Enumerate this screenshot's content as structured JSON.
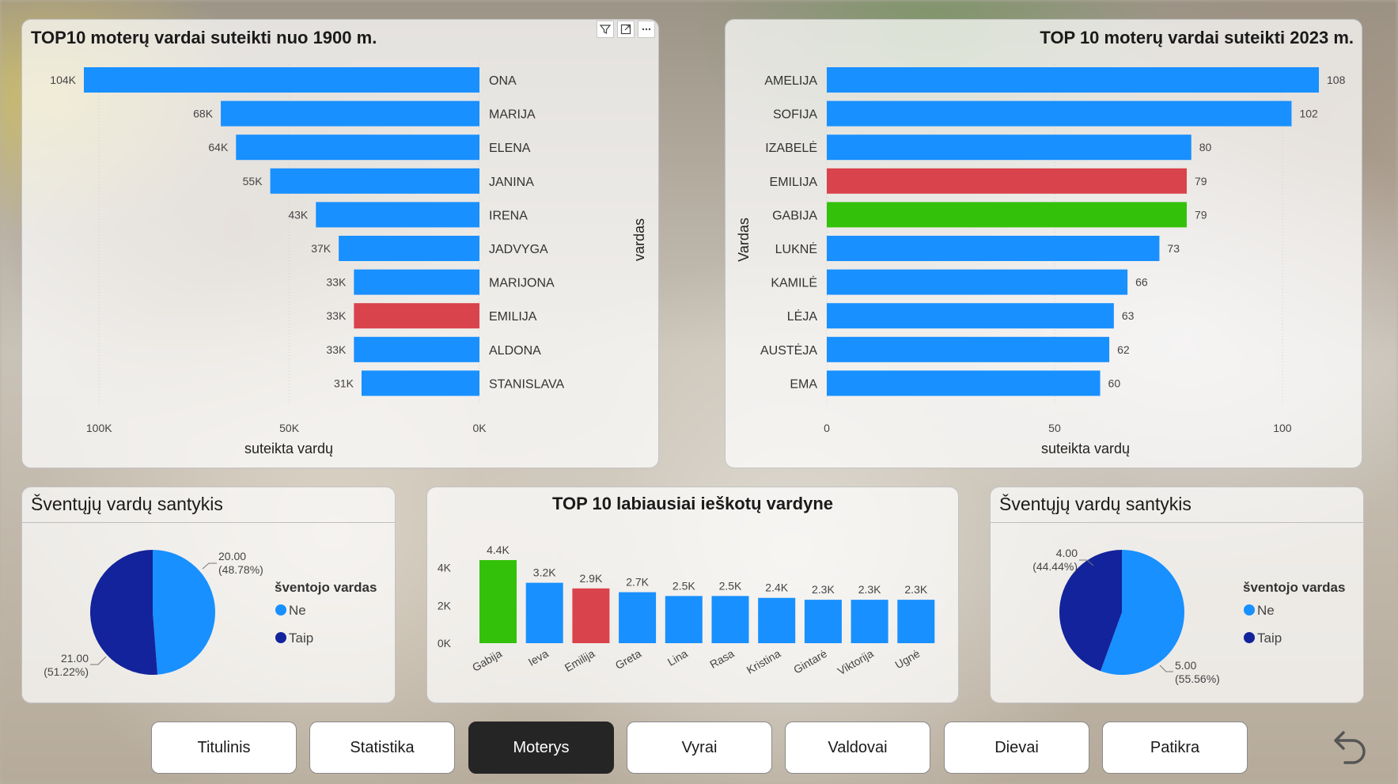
{
  "colors": {
    "blue": "#1890ff",
    "red": "#d9434b",
    "green": "#33c10a",
    "dark_blue": "#13239b"
  },
  "panel1": {
    "title": "TOP10 moterų vardai suteikti nuo 1900 m.",
    "chart_data": {
      "type": "bar",
      "categories": [
        "ONA",
        "MARIJA",
        "ELENA",
        "JANINA",
        "IRENA",
        "JADVYGA",
        "MARIJONA",
        "EMILIJA",
        "ALDONA",
        "STANISLAVA"
      ],
      "values": [
        104000,
        68000,
        64000,
        55000,
        43000,
        37000,
        33000,
        33000,
        33000,
        31000
      ],
      "data_labels": [
        "104K",
        "68K",
        "64K",
        "55K",
        "43K",
        "37K",
        "33K",
        "33K",
        "33K",
        "31K"
      ],
      "highlight": {
        "EMILIJA": "red"
      },
      "xlim": [
        0,
        104000
      ],
      "x_ticks": [
        100000,
        50000,
        0
      ],
      "x_tick_labels": [
        "100K",
        "50K",
        "0K"
      ],
      "xlabel": "suteikta vardų",
      "ylabel": "vardas"
    }
  },
  "panel2": {
    "title": "TOP 10 moterų vardai suteikti 2023 m.",
    "chart_data": {
      "type": "bar",
      "categories": [
        "AMELIJA",
        "SOFIJA",
        "IZABELĖ",
        "EMILIJA",
        "GABIJA",
        "LUKNĖ",
        "KAMILĖ",
        "LĖJA",
        "AUSTĖJA",
        "EMA"
      ],
      "values": [
        108,
        102,
        80,
        79,
        79,
        73,
        66,
        63,
        62,
        60
      ],
      "data_labels": [
        "108",
        "102",
        "80",
        "79",
        "79",
        "73",
        "66",
        "63",
        "62",
        "60"
      ],
      "highlight": {
        "EMILIJA": "red",
        "GABIJA": "green"
      },
      "xlim": [
        0,
        108
      ],
      "x_ticks": [
        0,
        50,
        100
      ],
      "x_tick_labels": [
        "0",
        "50",
        "100"
      ],
      "xlabel": "suteikta vardų",
      "ylabel": "Vardas"
    }
  },
  "panel3": {
    "title": "Šventųjų vardų santykis",
    "chart_data": {
      "type": "pie",
      "legend_title": "šventojo vardas",
      "slices": [
        {
          "name": "Ne",
          "value": 20.0,
          "value_label": "20.00",
          "pct_label": "(48.78%)",
          "color": "blue"
        },
        {
          "name": "Taip",
          "value": 21.0,
          "value_label": "21.00",
          "pct_label": "(51.22%)",
          "color": "dark_blue"
        }
      ]
    }
  },
  "panel4": {
    "title": "TOP 10 labiausiai ieškotų vardyne",
    "chart_data": {
      "type": "bar",
      "categories": [
        "Gabija",
        "Ieva",
        "Emilija",
        "Greta",
        "Lina",
        "Rasa",
        "Kristina",
        "Gintarė",
        "Viktorija",
        "Ugnė"
      ],
      "values": [
        4400,
        3200,
        2900,
        2700,
        2500,
        2500,
        2400,
        2300,
        2300,
        2300
      ],
      "data_labels": [
        "4.4K",
        "3.2K",
        "2.9K",
        "2.7K",
        "2.5K",
        "2.5K",
        "2.4K",
        "2.3K",
        "2.3K",
        "2.3K"
      ],
      "highlight": {
        "Gabija": "green",
        "Emilija": "red"
      },
      "ylim": [
        0,
        4400
      ],
      "y_ticks": [
        0,
        2000,
        4000
      ],
      "y_tick_labels": [
        "0K",
        "2K",
        "4K"
      ]
    }
  },
  "panel5": {
    "title": "Šventųjų vardų santykis",
    "chart_data": {
      "type": "pie",
      "legend_title": "šventojo vardas",
      "slices": [
        {
          "name": "Ne",
          "value": 5.0,
          "value_label": "5.00",
          "pct_label": "(55.56%)",
          "color": "blue"
        },
        {
          "name": "Taip",
          "value": 4.0,
          "value_label": "4.00",
          "pct_label": "(44.44%)",
          "color": "dark_blue"
        }
      ]
    }
  },
  "nav": {
    "items": [
      "Titulinis",
      "Statistika",
      "Moterys",
      "Vyrai",
      "Valdovai",
      "Dievai",
      "Patikra"
    ],
    "active": "Moterys"
  },
  "toolbar_icons": [
    "filter-icon",
    "focus-mode-icon",
    "more-options-icon"
  ]
}
